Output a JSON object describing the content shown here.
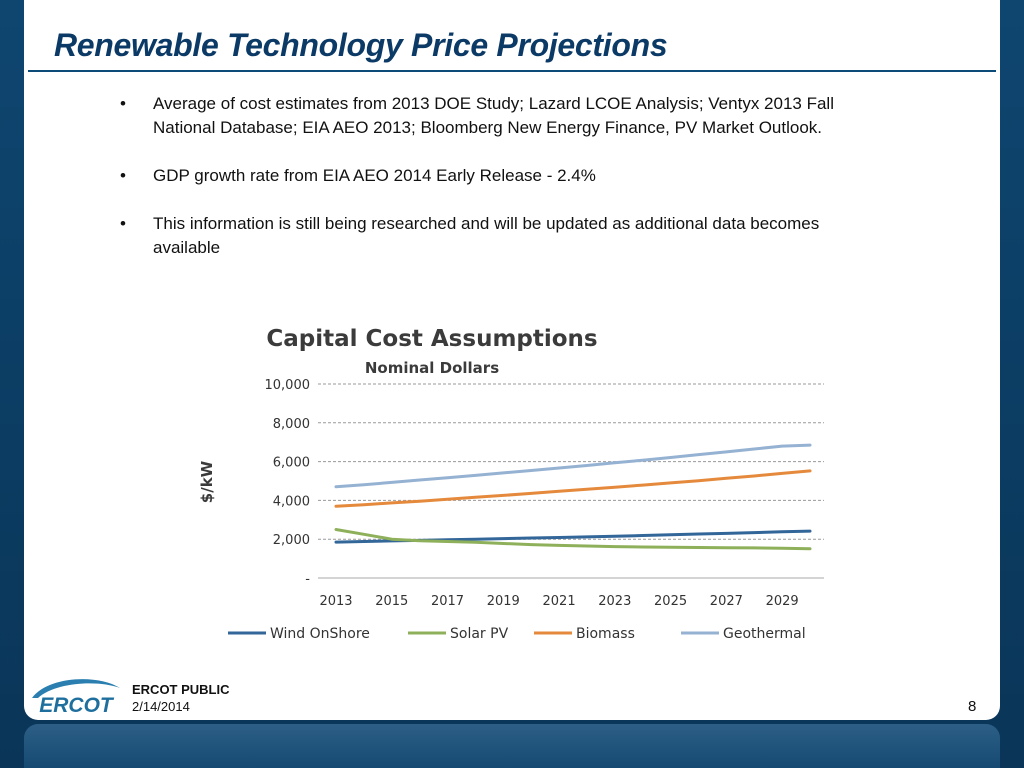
{
  "slide": {
    "title": "Renewable Technology Price Projections",
    "bullet_symbol": "•",
    "bullets": [
      "Average of cost estimates from 2013 DOE Study; Lazard LCOE Analysis; Ventyx 2013 Fall National Database; EIA AEO 2013; Bloomberg New Energy Finance, PV Market Outlook.",
      "GDP growth rate from EIA AEO 2014 Early Release - 2.4%",
      "This information is still being researched and will be updated as additional data becomes available"
    ]
  },
  "footer": {
    "logo_text": "ERCOT",
    "classification": "ERCOT PUBLIC",
    "date": "2/14/2014",
    "page_number": "8"
  },
  "colors": {
    "title": "#0c3a66",
    "frame": "#0b3a5e",
    "wind": "#336699",
    "solar": "#8fb05a",
    "biomass": "#e58a3c",
    "geothermal": "#95b2d3"
  },
  "chart_data": {
    "type": "line",
    "title": "Capital Cost Assumptions",
    "subtitle": "Nominal Dollars",
    "xlabel": "",
    "ylabel": "$/kW",
    "ylim": [
      0,
      10000
    ],
    "y_ticks": [
      0,
      2000,
      4000,
      6000,
      8000,
      10000
    ],
    "y_tick_labels": [
      "-",
      "2,000",
      "4,000",
      "6,000",
      "8,000",
      "10,000"
    ],
    "x": [
      2013,
      2014,
      2015,
      2016,
      2017,
      2018,
      2019,
      2020,
      2021,
      2022,
      2023,
      2024,
      2025,
      2026,
      2027,
      2028,
      2029,
      2030
    ],
    "x_tick_labels": [
      "2013",
      "2015",
      "2017",
      "2019",
      "2021",
      "2023",
      "2025",
      "2027",
      "2029"
    ],
    "grid": "horizontal dashed",
    "legend_position": "bottom",
    "series": [
      {
        "name": "Wind OnShore",
        "values": [
          1850,
          1880,
          1910,
          1940,
          1970,
          2000,
          2030,
          2060,
          2090,
          2120,
          2150,
          2190,
          2230,
          2270,
          2300,
          2340,
          2380,
          2420
        ]
      },
      {
        "name": "Solar PV",
        "values": [
          2500,
          2250,
          2000,
          1920,
          1880,
          1840,
          1780,
          1720,
          1680,
          1650,
          1620,
          1600,
          1580,
          1570,
          1560,
          1550,
          1530,
          1510
        ]
      },
      {
        "name": "Biomass",
        "values": [
          3700,
          3780,
          3870,
          3960,
          4060,
          4160,
          4260,
          4360,
          4470,
          4570,
          4680,
          4790,
          4900,
          5010,
          5140,
          5260,
          5390,
          5520
        ]
      },
      {
        "name": "Geothermal",
        "values": [
          4700,
          4810,
          4930,
          5050,
          5170,
          5290,
          5420,
          5540,
          5670,
          5800,
          5940,
          6070,
          6210,
          6360,
          6500,
          6650,
          6800,
          6850
        ]
      }
    ]
  }
}
